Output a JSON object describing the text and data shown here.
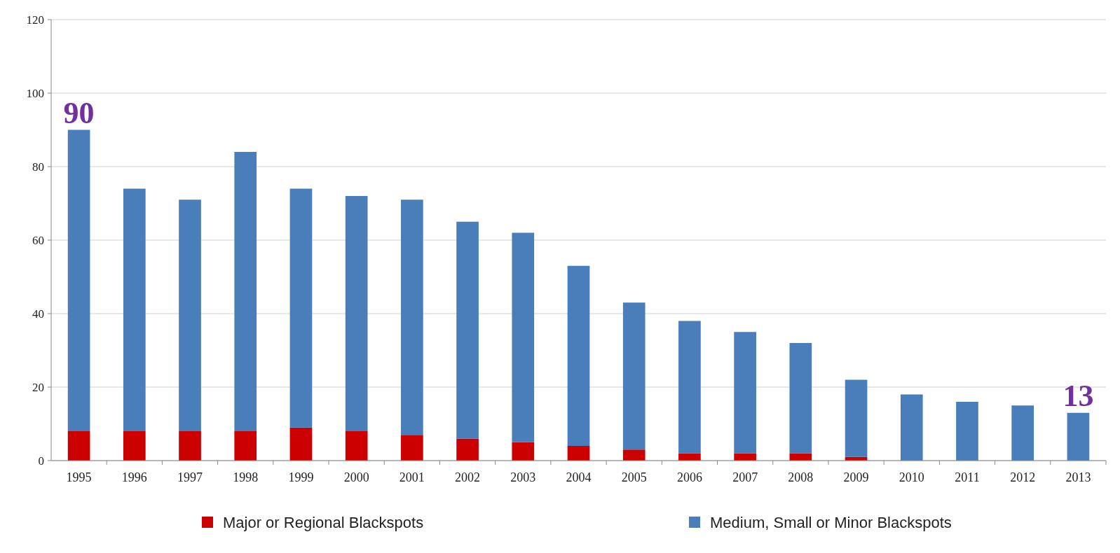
{
  "chart_data": {
    "type": "bar",
    "stacked": true,
    "categories": [
      "1995",
      "1996",
      "1997",
      "1998",
      "1999",
      "2000",
      "2001",
      "2002",
      "2003",
      "2004",
      "2005",
      "2006",
      "2007",
      "2008",
      "2009",
      "2010",
      "2011",
      "2012",
      "2013"
    ],
    "series": [
      {
        "name": "Major or Regional Blackspots",
        "color": "#cc0000",
        "values": [
          8,
          8,
          8,
          8,
          9,
          8,
          7,
          6,
          5,
          4,
          3,
          2,
          2,
          2,
          1,
          0,
          0,
          0,
          0
        ]
      },
      {
        "name": "Medium, Small or Minor Blackspots",
        "color": "#4a7ebb",
        "values": [
          82,
          66,
          63,
          76,
          65,
          64,
          64,
          59,
          57,
          49,
          40,
          36,
          33,
          30,
          21,
          18,
          16,
          15,
          13
        ]
      }
    ],
    "ylim": [
      0,
      120
    ],
    "yticks": [
      0,
      20,
      40,
      60,
      80,
      100,
      120
    ],
    "grid": "y",
    "legend": "bottom",
    "annotations": [
      {
        "text": "90",
        "x": "1995",
        "y": 90
      },
      {
        "text": "13",
        "x": "2013",
        "y": 13
      }
    ]
  }
}
